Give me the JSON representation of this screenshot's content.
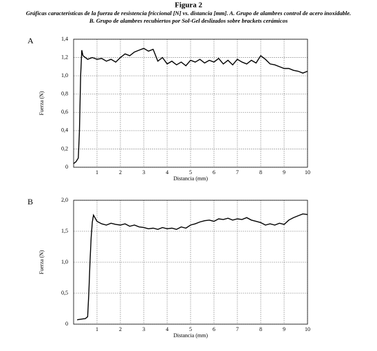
{
  "figure": {
    "title": "Figura 2",
    "caption": [
      "Gráficas características de la fuerza de resistencia friccional [N] vs. distancia [mm]. A. Grupo de alambres control de acero inoxidable.",
      "B. Grupo de alambres recubiertos por Sol-Gel deslizados sobre brackets cerámicos"
    ]
  },
  "chart_data": [
    {
      "type": "line",
      "label": "A",
      "xlabel": "Distancia (mm)",
      "ylabel": "Fuerza (N)",
      "grid": true,
      "xlim": [
        0,
        10
      ],
      "xticks": [
        1,
        2,
        3,
        4,
        5,
        6,
        7,
        8,
        9,
        10
      ],
      "ylim": [
        0,
        1.4
      ],
      "yticks": [
        0,
        {
          "value": 0.2,
          "label": "0,2"
        },
        {
          "value": 0.4,
          "label": "0,4"
        },
        {
          "value": 0.6,
          "label": "0,6"
        },
        {
          "value": 0.8,
          "label": "0,8"
        },
        {
          "value": 1.0,
          "label": "1,0"
        },
        {
          "value": 1.2,
          "label": "1,2"
        },
        {
          "value": 1.4,
          "label": "1,4"
        }
      ],
      "x": [
        0,
        0.1,
        0.2,
        0.25,
        0.3,
        0.35,
        0.4,
        0.5,
        0.6,
        0.8,
        1.0,
        1.2,
        1.4,
        1.6,
        1.8,
        2.0,
        2.2,
        2.4,
        2.6,
        2.8,
        3.0,
        3.2,
        3.4,
        3.6,
        3.8,
        4.0,
        4.2,
        4.4,
        4.6,
        4.8,
        5.0,
        5.2,
        5.4,
        5.6,
        5.8,
        6.0,
        6.2,
        6.4,
        6.6,
        6.8,
        7.0,
        7.2,
        7.4,
        7.6,
        7.8,
        8.0,
        8.2,
        8.4,
        8.6,
        8.8,
        9.0,
        9.2,
        9.4,
        9.6,
        9.8,
        10.0
      ],
      "series": [
        {
          "color": "#000000",
          "values": [
            0.04,
            0.06,
            0.1,
            0.4,
            1.0,
            1.28,
            1.22,
            1.2,
            1.18,
            1.2,
            1.18,
            1.19,
            1.16,
            1.18,
            1.15,
            1.2,
            1.24,
            1.22,
            1.26,
            1.28,
            1.3,
            1.27,
            1.29,
            1.16,
            1.2,
            1.13,
            1.16,
            1.12,
            1.15,
            1.11,
            1.17,
            1.15,
            1.18,
            1.14,
            1.17,
            1.15,
            1.19,
            1.13,
            1.17,
            1.12,
            1.18,
            1.15,
            1.13,
            1.17,
            1.14,
            1.22,
            1.18,
            1.13,
            1.12,
            1.1,
            1.08,
            1.08,
            1.06,
            1.05,
            1.03,
            1.05
          ]
        }
      ]
    },
    {
      "type": "line",
      "label": "B",
      "xlabel": "Distancia (mm)",
      "ylabel": "Fuerza (N)",
      "grid": true,
      "xlim": [
        0,
        10
      ],
      "xticks": [
        1,
        2,
        3,
        4,
        5,
        6,
        7,
        8,
        9,
        10
      ],
      "ylim": [
        0,
        2
      ],
      "yticks": [
        0,
        {
          "value": 0.5,
          "label": "0,5"
        },
        {
          "value": 1.0,
          "label": "1,0"
        },
        {
          "value": 1.5,
          "label": "1,5"
        },
        {
          "value": 2.0,
          "label": "2,0"
        }
      ],
      "x": [
        0.15,
        0.3,
        0.5,
        0.6,
        0.65,
        0.7,
        0.75,
        0.8,
        0.85,
        1.0,
        1.2,
        1.4,
        1.6,
        1.8,
        2.0,
        2.2,
        2.4,
        2.6,
        2.8,
        3.0,
        3.2,
        3.4,
        3.6,
        3.8,
        4.0,
        4.2,
        4.4,
        4.6,
        4.8,
        5.0,
        5.2,
        5.4,
        5.6,
        5.8,
        6.0,
        6.2,
        6.4,
        6.6,
        6.8,
        7.0,
        7.2,
        7.4,
        7.6,
        7.8,
        8.0,
        8.2,
        8.4,
        8.6,
        8.8,
        9.0,
        9.2,
        9.4,
        9.6,
        9.8,
        10.0
      ],
      "series": [
        {
          "color": "#000000",
          "values": [
            0.07,
            0.08,
            0.09,
            0.12,
            0.5,
            1.0,
            1.4,
            1.65,
            1.76,
            1.66,
            1.62,
            1.6,
            1.63,
            1.61,
            1.6,
            1.62,
            1.58,
            1.6,
            1.57,
            1.56,
            1.54,
            1.55,
            1.53,
            1.56,
            1.54,
            1.55,
            1.53,
            1.57,
            1.55,
            1.6,
            1.62,
            1.65,
            1.67,
            1.68,
            1.66,
            1.7,
            1.69,
            1.71,
            1.68,
            1.7,
            1.69,
            1.72,
            1.68,
            1.66,
            1.64,
            1.6,
            1.62,
            1.6,
            1.63,
            1.61,
            1.68,
            1.72,
            1.75,
            1.78,
            1.77
          ]
        }
      ]
    }
  ]
}
